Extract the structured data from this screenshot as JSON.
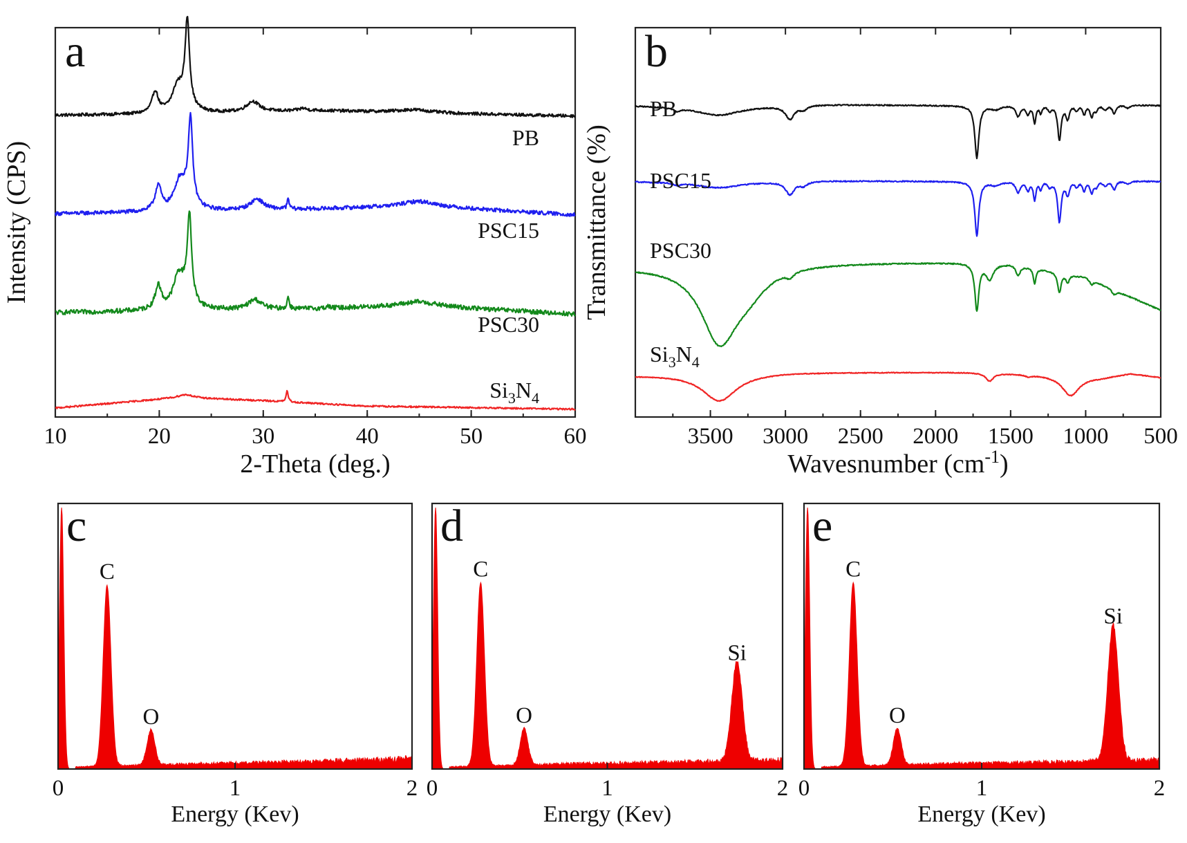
{
  "colors": {
    "PB": "#111111",
    "PSC15": "#1f1fef",
    "PSC30": "#13891b",
    "Si3N4": "#f02525",
    "eds_fill": "#ee0000"
  },
  "chart_data": [
    {
      "id": "a",
      "type": "line",
      "panel_label": "a",
      "xlabel": "2-Theta (deg.)",
      "ylabel": "Intensity (CPS)",
      "xlim": [
        10,
        60
      ],
      "xticks": [
        10,
        20,
        30,
        40,
        50,
        60
      ],
      "xtick_labels": [
        "10",
        "20",
        "30",
        "40",
        "50",
        "60"
      ],
      "y_ticks_labeled": false,
      "series": [
        {
          "name": "PB",
          "color_key": "PB",
          "baseline": 0.775,
          "drift": [
            [
              10,
              0
            ],
            [
              22,
              0.003
            ],
            [
              35,
              0.012
            ],
            [
              45,
              0.006
            ],
            [
              60,
              -0.002
            ]
          ],
          "noise": 0.004,
          "peaks": [
            [
              19.6,
              0.055,
              0.35
            ],
            [
              21.7,
              0.045,
              0.55
            ],
            [
              22.7,
              0.215,
              0.25
            ],
            [
              22.2,
              0.035,
              0.9
            ],
            [
              29.0,
              0.027,
              0.75
            ],
            [
              33.8,
              0.006,
              0.4
            ],
            [
              44.5,
              0.008,
              2.0
            ]
          ]
        },
        {
          "name": "PSC15",
          "color_key": "PSC15",
          "baseline": 0.522,
          "drift": [
            [
              10,
              0
            ],
            [
              20,
              0.004
            ],
            [
              35,
              0.012
            ],
            [
              45,
              0.02
            ],
            [
              60,
              -0.003
            ]
          ],
          "noise": 0.005,
          "peaks": [
            [
              19.9,
              0.065,
              0.35
            ],
            [
              21.9,
              0.05,
              0.55
            ],
            [
              23.0,
              0.21,
              0.25
            ],
            [
              22.4,
              0.04,
              0.9
            ],
            [
              29.4,
              0.028,
              0.75
            ],
            [
              32.4,
              0.025,
              0.12
            ],
            [
              45.0,
              0.012,
              2.0
            ]
          ]
        },
        {
          "name": "PSC30",
          "color_key": "PSC30",
          "baseline": 0.268,
          "drift": [
            [
              10,
              0
            ],
            [
              20,
              0.004
            ],
            [
              35,
              0.01
            ],
            [
              45,
              0.018
            ],
            [
              60,
              -0.004
            ]
          ],
          "noise": 0.006,
          "peaks": [
            [
              19.9,
              0.06,
              0.35
            ],
            [
              21.8,
              0.06,
              0.55
            ],
            [
              22.9,
              0.215,
              0.25
            ],
            [
              22.3,
              0.04,
              0.9
            ],
            [
              29.2,
              0.025,
              0.75
            ],
            [
              32.4,
              0.03,
              0.12
            ],
            [
              36.2,
              0.005,
              0.2
            ],
            [
              45.0,
              0.01,
              2.0
            ]
          ]
        },
        {
          "name": "Si3N4",
          "color_key": "Si3N4",
          "baseline": 0.02,
          "drift": [
            [
              10,
              0.003
            ],
            [
              22,
              0.03
            ],
            [
              30,
              0.022
            ],
            [
              40,
              0.008
            ],
            [
              60,
              0.0
            ]
          ],
          "noise": 0.002,
          "peaks": [
            [
              22.6,
              0.008,
              0.8
            ],
            [
              32.3,
              0.028,
              0.12
            ]
          ]
        }
      ],
      "series_labels": [
        {
          "text": "PB",
          "sub": ""
        },
        {
          "text": "PSC15",
          "sub": ""
        },
        {
          "text": "PSC30",
          "sub": ""
        },
        {
          "text": "Si",
          "sub": "3",
          "text2": "N",
          "sub2": "4"
        }
      ]
    },
    {
      "id": "b",
      "type": "line",
      "panel_label": "b",
      "xlabel": "Wavesnumber (cm",
      "xlabel_sup": "-1",
      "xlabel_end": ")",
      "ylabel": "Transmittance (%)",
      "xlim": [
        4000,
        500
      ],
      "xticks": [
        3500,
        3000,
        2500,
        2000,
        1500,
        1000,
        500
      ],
      "xtick_labels": [
        "3500",
        "3000",
        "2500",
        "2000",
        "1500",
        "1000",
        "500"
      ],
      "y_ticks_labeled": false,
      "series": [
        {
          "name": "PB",
          "color_key": "PB",
          "baseline": 0.8,
          "drift": [
            [
              4000,
              0
            ],
            [
              3500,
              -0.005
            ],
            [
              2800,
              0.003
            ],
            [
              1800,
              0.0
            ],
            [
              1000,
              0.005
            ],
            [
              500,
              0.0
            ]
          ],
          "noise": 0.0015,
          "dips": [
            [
              3720,
              0.008,
              25
            ],
            [
              3440,
              0.02,
              170
            ],
            [
              2970,
              0.034,
              35
            ],
            [
              2880,
              0.01,
              30
            ],
            [
              1725,
              0.135,
              16
            ],
            [
              1600,
              0.01,
              40
            ],
            [
              1450,
              0.028,
              18
            ],
            [
              1385,
              0.022,
              14
            ],
            [
              1340,
              0.045,
              10
            ],
            [
              1300,
              0.02,
              10
            ],
            [
              1240,
              0.014,
              15
            ],
            [
              1175,
              0.09,
              14
            ],
            [
              1120,
              0.035,
              14
            ],
            [
              1060,
              0.014,
              15
            ],
            [
              1010,
              0.025,
              12
            ],
            [
              960,
              0.03,
              14
            ],
            [
              930,
              0.014,
              12
            ],
            [
              870,
              0.012,
              20
            ],
            [
              810,
              0.022,
              14
            ],
            [
              720,
              0.008,
              20
            ]
          ]
        },
        {
          "name": "PSC15",
          "color_key": "PSC15",
          "baseline": 0.605,
          "drift": [
            [
              4000,
              0
            ],
            [
              3500,
              -0.003
            ],
            [
              2800,
              0.002
            ],
            [
              1800,
              0.0
            ],
            [
              1000,
              0.004
            ],
            [
              500,
              0.0
            ]
          ],
          "noise": 0.0015,
          "dips": [
            [
              3720,
              0.006,
              25
            ],
            [
              3440,
              0.013,
              170
            ],
            [
              2970,
              0.033,
              35
            ],
            [
              2880,
              0.01,
              30
            ],
            [
              1725,
              0.14,
              16
            ],
            [
              1600,
              0.01,
              40
            ],
            [
              1450,
              0.028,
              18
            ],
            [
              1385,
              0.022,
              14
            ],
            [
              1340,
              0.048,
              10
            ],
            [
              1300,
              0.02,
              10
            ],
            [
              1240,
              0.014,
              15
            ],
            [
              1175,
              0.105,
              14
            ],
            [
              1120,
              0.035,
              14
            ],
            [
              1060,
              0.014,
              15
            ],
            [
              1010,
              0.025,
              12
            ],
            [
              960,
              0.03,
              14
            ],
            [
              930,
              0.014,
              12
            ],
            [
              870,
              0.012,
              20
            ],
            [
              810,
              0.022,
              14
            ],
            [
              720,
              0.008,
              20
            ]
          ]
        },
        {
          "name": "PSC30",
          "color_key": "PSC30",
          "baseline": 0.395,
          "drift": [
            [
              4000,
              -0.008
            ],
            [
              3000,
              0.003
            ],
            [
              1800,
              0.003
            ],
            [
              1500,
              0.0
            ],
            [
              1000,
              -0.035
            ],
            [
              500,
              -0.12
            ]
          ],
          "noise": 0.0015,
          "dips": [
            [
              3440,
              0.19,
              150
            ],
            [
              3250,
              0.05,
              160
            ],
            [
              2970,
              0.014,
              30
            ],
            [
              1725,
              0.12,
              16
            ],
            [
              1640,
              0.04,
              30
            ],
            [
              1450,
              0.025,
              18
            ],
            [
              1340,
              0.04,
              10
            ],
            [
              1175,
              0.05,
              14
            ],
            [
              1120,
              0.02,
              14
            ],
            [
              960,
              0.012,
              14
            ],
            [
              810,
              0.012,
              20
            ]
          ]
        },
        {
          "name": "Si3N4",
          "color_key": "Si3N4",
          "baseline": 0.112,
          "drift": [
            [
              4000,
              -0.005
            ],
            [
              3000,
              0.003
            ],
            [
              1800,
              0.003
            ],
            [
              1500,
              0.0
            ],
            [
              1200,
              -0.005
            ],
            [
              900,
              -0.01
            ],
            [
              700,
              0.0
            ],
            [
              500,
              -0.01
            ]
          ],
          "noise": 0.001,
          "dips": [
            [
              3440,
              0.07,
              140
            ],
            [
              1640,
              0.02,
              30
            ],
            [
              1380,
              0.005,
              20
            ],
            [
              1100,
              0.05,
              70
            ]
          ]
        }
      ],
      "series_labels": [
        {
          "text": "PB",
          "sub": ""
        },
        {
          "text": "PSC15",
          "sub": ""
        },
        {
          "text": "PSC30",
          "sub": ""
        },
        {
          "text": "Si",
          "sub": "3",
          "text2": "N",
          "sub2": "4"
        }
      ]
    },
    {
      "id": "c",
      "type": "area",
      "panel_label": "c",
      "xlabel": "Energy (Kev)",
      "xlim": [
        0,
        2
      ],
      "xticks": [
        0,
        1,
        2
      ],
      "xtick_labels": [
        "0",
        "1",
        "2"
      ],
      "ylim": [
        0,
        1
      ],
      "y_ticks_labeled": false,
      "peaks": [
        {
          "element": "C",
          "x": 0.277,
          "height": 0.69,
          "width": 0.022
        },
        {
          "element": "O",
          "x": 0.525,
          "height": 0.135,
          "width": 0.022
        },
        {
          "element": "",
          "x": 0.02,
          "height": 1.0,
          "width": 0.012
        }
      ],
      "background": [
        [
          0.1,
          0.008
        ],
        [
          0.8,
          0.02
        ],
        [
          1.5,
          0.03
        ],
        [
          2.0,
          0.04
        ]
      ],
      "peak_labels": [
        {
          "text": "C",
          "x": 0.277,
          "height": 0.69
        },
        {
          "text": "O",
          "x": 0.525,
          "height": 0.135
        }
      ]
    },
    {
      "id": "d",
      "type": "area",
      "panel_label": "d",
      "xlabel": "Energy (Kev)",
      "xlim": [
        0,
        2
      ],
      "xticks": [
        0,
        1,
        2
      ],
      "xtick_labels": [
        "0",
        "1",
        "2"
      ],
      "ylim": [
        0,
        1
      ],
      "y_ticks_labeled": false,
      "peaks": [
        {
          "element": "C",
          "x": 0.277,
          "height": 0.7,
          "width": 0.022
        },
        {
          "element": "O",
          "x": 0.525,
          "height": 0.14,
          "width": 0.022
        },
        {
          "element": "Si",
          "x": 1.74,
          "height": 0.38,
          "width": 0.03
        },
        {
          "element": "",
          "x": 0.02,
          "height": 1.0,
          "width": 0.012
        }
      ],
      "background": [
        [
          0.1,
          0.008
        ],
        [
          0.8,
          0.02
        ],
        [
          1.5,
          0.028
        ],
        [
          2.0,
          0.035
        ]
      ],
      "peak_labels": [
        {
          "text": "C",
          "x": 0.277,
          "height": 0.7
        },
        {
          "text": "O",
          "x": 0.525,
          "height": 0.14
        },
        {
          "text": "Si",
          "x": 1.74,
          "height": 0.38
        }
      ]
    },
    {
      "id": "e",
      "type": "area",
      "panel_label": "e",
      "xlabel": "Energy (Kev)",
      "xlim": [
        0,
        2
      ],
      "xticks": [
        0,
        1,
        2
      ],
      "xtick_labels": [
        "0",
        "1",
        "2"
      ],
      "ylim": [
        0,
        1
      ],
      "y_ticks_labeled": false,
      "peaks": [
        {
          "element": "C",
          "x": 0.277,
          "height": 0.7,
          "width": 0.022
        },
        {
          "element": "O",
          "x": 0.525,
          "height": 0.14,
          "width": 0.022
        },
        {
          "element": "Si",
          "x": 1.74,
          "height": 0.52,
          "width": 0.03
        },
        {
          "element": "",
          "x": 0.02,
          "height": 1.0,
          "width": 0.012
        }
      ],
      "background": [
        [
          0.1,
          0.008
        ],
        [
          0.8,
          0.02
        ],
        [
          1.5,
          0.028
        ],
        [
          2.0,
          0.035
        ]
      ],
      "peak_labels": [
        {
          "text": "C",
          "x": 0.277,
          "height": 0.7
        },
        {
          "text": "O",
          "x": 0.525,
          "height": 0.14
        },
        {
          "text": "Si",
          "x": 1.74,
          "height": 0.52
        }
      ]
    }
  ]
}
